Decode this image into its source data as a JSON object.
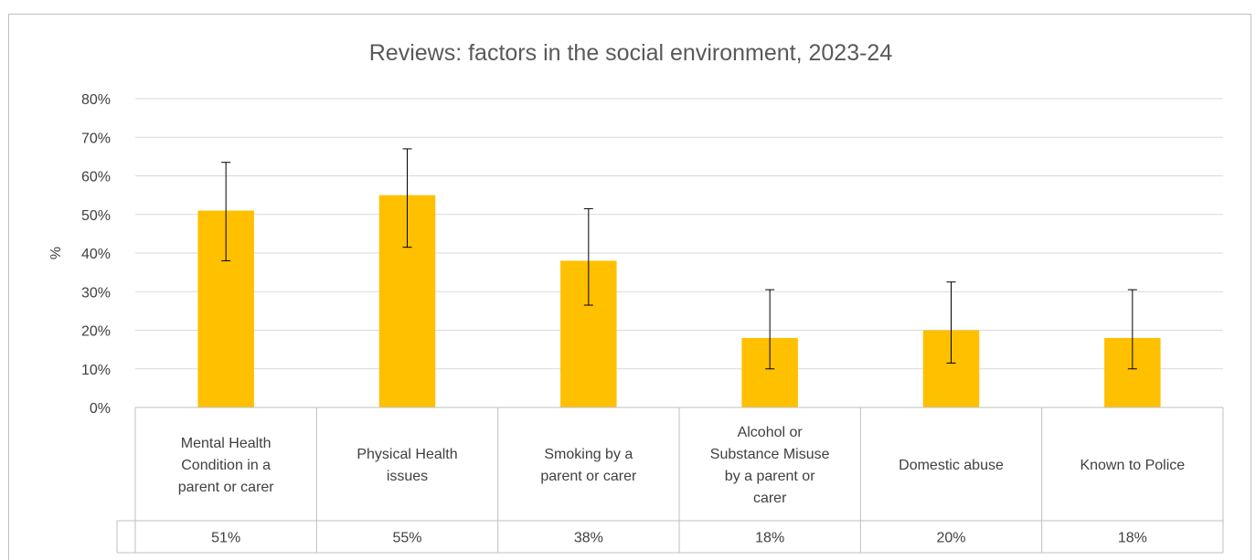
{
  "chart_data": {
    "type": "bar",
    "title": "Reviews: factors in the social environment, 2023-24",
    "xlabel": "",
    "ylabel": "%",
    "ylim": [
      0,
      80
    ],
    "yticks": [
      "0%",
      "10%",
      "20%",
      "30%",
      "40%",
      "50%",
      "60%",
      "70%",
      "80%"
    ],
    "grid": true,
    "legend": "none",
    "bar_color": "#FFC000",
    "categories": [
      [
        "Mental Health",
        "Condition in a",
        "parent or carer"
      ],
      [
        "Physical Health",
        "issues"
      ],
      [
        "Smoking by a",
        "parent or carer"
      ],
      [
        "Alcohol or",
        "Substance Misuse",
        "by a parent or",
        "carer"
      ],
      [
        "Domestic abuse"
      ],
      [
        "Known to Police"
      ]
    ],
    "values": [
      51,
      55,
      38,
      18,
      20,
      18
    ],
    "error_low": [
      38,
      41.5,
      26.5,
      10,
      11.5,
      10
    ],
    "error_high": [
      63.5,
      67,
      51.5,
      30.5,
      32.5,
      30.5
    ],
    "value_labels": [
      "51%",
      "55%",
      "38%",
      "18%",
      "20%",
      "18%"
    ]
  }
}
